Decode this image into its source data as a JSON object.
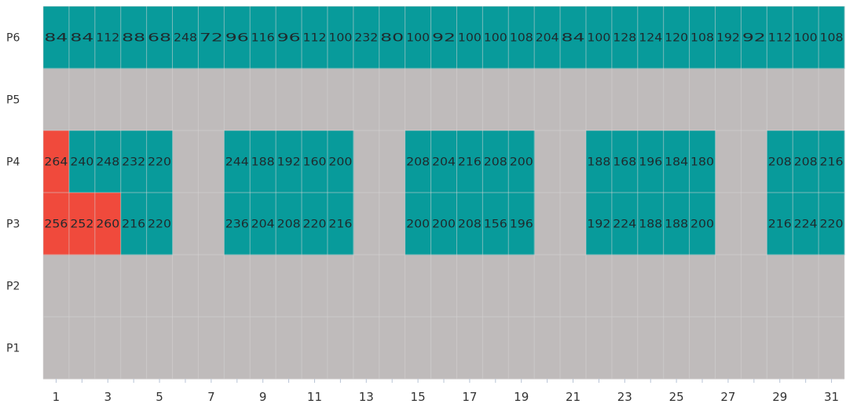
{
  "chart_data": {
    "type": "heatmap",
    "title": "",
    "xlabel": "",
    "ylabel": "",
    "x": [
      1,
      2,
      3,
      4,
      5,
      6,
      7,
      8,
      9,
      10,
      11,
      12,
      13,
      14,
      15,
      16,
      17,
      18,
      19,
      20,
      21,
      22,
      23,
      24,
      25,
      26,
      27,
      28,
      29,
      30,
      31
    ],
    "x_tick_labels": [
      "1",
      "3",
      "5",
      "7",
      "9",
      "11",
      "13",
      "15",
      "17",
      "19",
      "21",
      "23",
      "25",
      "27",
      "29",
      "31"
    ],
    "y_categories": [
      "P6",
      "P5",
      "P4",
      "P3",
      "P2",
      "P1"
    ],
    "colors": {
      "active": "#089b9b",
      "highlight": "#f04a3c",
      "empty": "#bfbbbb",
      "grid": "#d6d3d3"
    },
    "highlight_cells": [
      {
        "row": "P4",
        "x": 1
      },
      {
        "row": "P3",
        "x": 1
      },
      {
        "row": "P3",
        "x": 2
      },
      {
        "row": "P3",
        "x": 3
      }
    ],
    "rows": {
      "P6": [
        "84",
        "84",
        "112",
        "88",
        "68",
        "248",
        "72",
        "96",
        "116",
        "96",
        "112",
        "100",
        "232",
        "80",
        "100",
        "92",
        "100",
        "100",
        "108",
        "204",
        "84",
        "100",
        "128",
        "124",
        "120",
        "108",
        "192",
        "92",
        "112",
        "100",
        "108"
      ],
      "P5": [
        null,
        null,
        null,
        null,
        null,
        null,
        null,
        null,
        null,
        null,
        null,
        null,
        null,
        null,
        null,
        null,
        null,
        null,
        null,
        null,
        null,
        null,
        null,
        null,
        null,
        null,
        null,
        null,
        null,
        null,
        null
      ],
      "P4": [
        "264",
        "240",
        "248",
        "232",
        "220",
        null,
        null,
        "244",
        "188",
        "192",
        "160",
        "200",
        null,
        null,
        "208",
        "204",
        "216",
        "208",
        "200",
        null,
        null,
        "188",
        "168",
        "196",
        "184",
        "180",
        null,
        null,
        "208",
        "208",
        "216"
      ],
      "P3": [
        "256",
        "252",
        "260",
        "216",
        "220",
        null,
        null,
        "236",
        "204",
        "208",
        "220",
        "216",
        null,
        null,
        "200",
        "200",
        "208",
        "156",
        "196",
        null,
        null,
        "192",
        "224",
        "188",
        "188",
        "200",
        null,
        null,
        "216",
        "224",
        "220"
      ],
      "P2": [
        null,
        null,
        null,
        null,
        null,
        null,
        null,
        null,
        null,
        null,
        null,
        null,
        null,
        null,
        null,
        null,
        null,
        null,
        null,
        null,
        null,
        null,
        null,
        null,
        null,
        null,
        null,
        null,
        null,
        null,
        null
      ],
      "P1": [
        null,
        null,
        null,
        null,
        null,
        null,
        null,
        null,
        null,
        null,
        null,
        null,
        null,
        null,
        null,
        null,
        null,
        null,
        null,
        null,
        null,
        null,
        null,
        null,
        null,
        null,
        null,
        null,
        null,
        null,
        null
      ]
    }
  }
}
